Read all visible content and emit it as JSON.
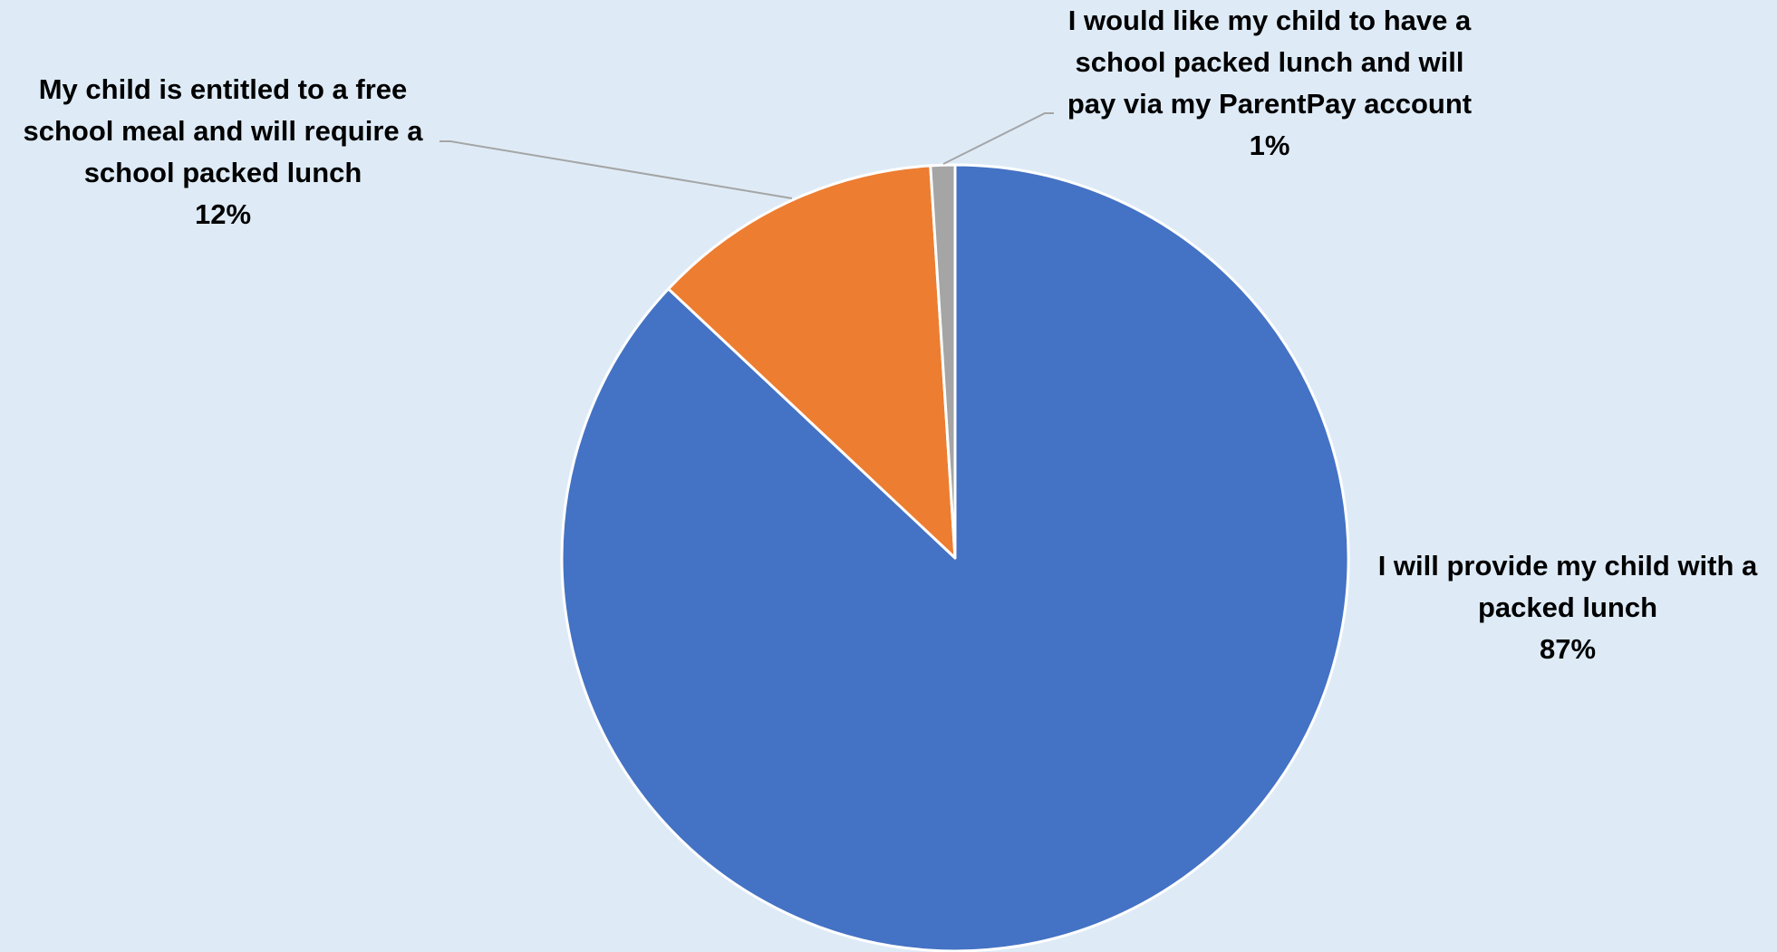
{
  "chart_data": {
    "type": "pie",
    "title": "",
    "legend": "none",
    "start_angle_deg": 0,
    "direction": "clockwise",
    "slices": [
      {
        "label_lines": [
          "I will provide my child with a",
          "packed lunch"
        ],
        "percent_label": "87%",
        "value": 87,
        "color": "#4472C4"
      },
      {
        "label_lines": [
          "My child is entitled to a free",
          "school meal and will require a",
          "school packed lunch"
        ],
        "percent_label": "12%",
        "value": 12,
        "color": "#ED7D31"
      },
      {
        "label_lines": [
          "I would like my child to have a",
          "school packed lunch and will",
          "pay via my ParentPay account"
        ],
        "percent_label": "1%",
        "value": 1,
        "color": "#A5A5A5"
      }
    ],
    "slice_border_color": "#FFFFFF",
    "leader_line_color": "#A5A5A5"
  }
}
